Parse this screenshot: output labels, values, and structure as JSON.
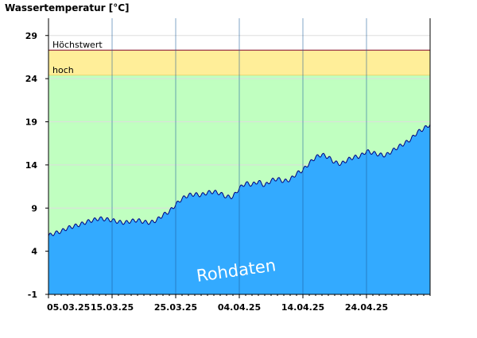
{
  "chart_data": {
    "type": "area",
    "title": "Wassertemperatur [°C]",
    "xlabel": "",
    "ylabel": "",
    "ylim": [
      -1,
      31
    ],
    "yticks": [
      -1,
      4,
      9,
      14,
      19,
      24,
      29
    ],
    "x_range": [
      "2025-03-05",
      "2025-05-04"
    ],
    "xtick_dates": [
      "2025-03-05",
      "2025-03-15",
      "2025-03-25",
      "2025-04-04",
      "2025-04-14",
      "2025-04-24"
    ],
    "xtick_labels": [
      "05.03.25",
      "15.03.25",
      "25.03.25",
      "04.04.25",
      "14.04.25",
      "24.04.25"
    ],
    "watermark": "Rohdaten",
    "thresholds": [
      {
        "label": "hoch",
        "value": 24.4,
        "color": "#ffee99"
      },
      {
        "label": "Höchstwert",
        "value": 27.3,
        "color": "#993344"
      }
    ],
    "normal_zone_color": "#c0ffc0",
    "fill_color": "#33aaff",
    "line_color": "#000080",
    "grid": true,
    "series": [
      {
        "x": [
          "2025-03-05",
          "2025-03-06",
          "2025-03-07",
          "2025-03-08",
          "2025-03-09",
          "2025-03-10",
          "2025-03-11",
          "2025-03-12",
          "2025-03-13",
          "2025-03-14",
          "2025-03-15",
          "2025-03-16",
          "2025-03-17",
          "2025-03-18",
          "2025-03-19",
          "2025-03-20",
          "2025-03-21",
          "2025-03-22",
          "2025-03-23",
          "2025-03-24",
          "2025-03-25",
          "2025-03-26",
          "2025-03-27",
          "2025-03-28",
          "2025-03-29",
          "2025-03-30",
          "2025-03-31",
          "2025-04-01",
          "2025-04-02",
          "2025-04-03",
          "2025-04-04",
          "2025-04-05",
          "2025-04-06",
          "2025-04-07",
          "2025-04-08",
          "2025-04-09",
          "2025-04-10",
          "2025-04-11",
          "2025-04-12",
          "2025-04-13",
          "2025-04-14",
          "2025-04-15",
          "2025-04-16",
          "2025-04-17",
          "2025-04-18",
          "2025-04-19",
          "2025-04-20",
          "2025-04-21",
          "2025-04-22",
          "2025-04-23",
          "2025-04-24",
          "2025-04-25",
          "2025-04-26",
          "2025-04-27",
          "2025-04-28",
          "2025-04-29",
          "2025-04-30",
          "2025-05-01",
          "2025-05-02",
          "2025-05-03",
          "2025-05-04"
        ],
        "y": [
          5.8,
          6.1,
          6.3,
          6.7,
          6.9,
          7.1,
          7.4,
          7.6,
          7.8,
          7.7,
          7.6,
          7.4,
          7.3,
          7.5,
          7.6,
          7.4,
          7.3,
          7.6,
          8.2,
          8.6,
          9.4,
          10.1,
          10.5,
          10.6,
          10.5,
          10.8,
          10.9,
          10.7,
          10.3,
          10.3,
          11.3,
          11.9,
          11.7,
          12.1,
          11.6,
          12.2,
          12.4,
          12.1,
          12.3,
          13.0,
          13.4,
          14.2,
          14.9,
          15.2,
          14.9,
          14.3,
          14.1,
          14.6,
          14.9,
          15.0,
          15.6,
          15.4,
          15.2,
          15.1,
          15.6,
          16.1,
          16.5,
          17.0,
          17.8,
          18.2,
          18.7
        ]
      }
    ]
  }
}
